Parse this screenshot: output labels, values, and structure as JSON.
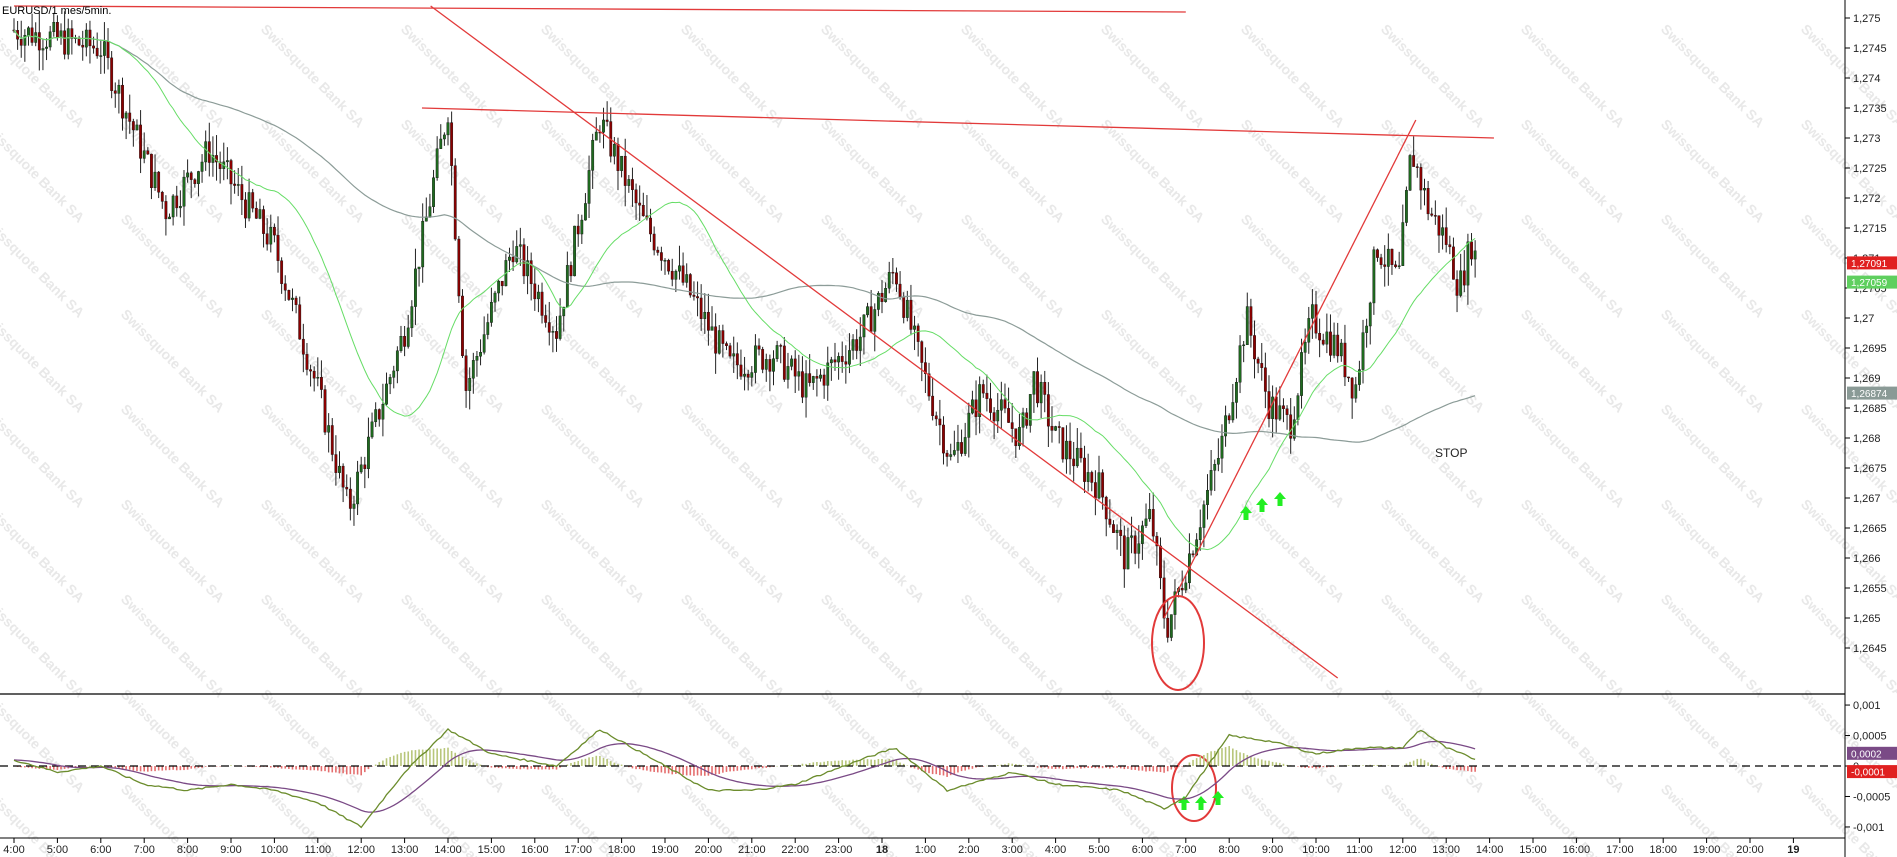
{
  "title": "EURUSD/1 mes/5min.",
  "watermark": "Swissquote Bank SA",
  "annotation": "STOP",
  "colors": {
    "bull": "#1f6b1f",
    "bear": "#8b0000",
    "ma_fast": "#66dd66",
    "ma_slow": "#8c9c98",
    "trendline": "#e23a3a",
    "macd_line": "#6b8c2c",
    "signal_line": "#7a4a86",
    "hist_pos": "#b8c67a",
    "hist_neg": "#e46e6e",
    "arrow": "#22ee22"
  },
  "chart_data": [
    {
      "type": "candlestick",
      "name": "price",
      "title": "EURUSD/1 mes/5min.",
      "ylim": [
        1.2638,
        1.2752
      ],
      "y_ticks": [
        "1,275",
        "1,2745",
        "1,274",
        "1,2735",
        "1,273",
        "1,2725",
        "1,272",
        "1,2715",
        "1,271",
        "1,2705",
        "1,27",
        "1,2695",
        "1,269",
        "1,2685",
        "1,268",
        "1,2675",
        "1,267",
        "1,2665",
        "1,266",
        "1,2655",
        "1,265",
        "1,2645"
      ],
      "price_labels": [
        {
          "value": 1.27091,
          "text": "1,27091",
          "color": "#e02020"
        },
        {
          "value": 1.27059,
          "text": "1,27059",
          "color": "#5fcf5f"
        },
        {
          "value": 1.26874,
          "text": "1,26874",
          "color": "#8a9a96"
        }
      ],
      "x_range_hours": [
        3.75,
        24.3
      ],
      "key_points": [
        {
          "t": 4.0,
          "price": 1.2748
        },
        {
          "t": 6.0,
          "price": 1.2745
        },
        {
          "t": 7.5,
          "price": 1.2718
        },
        {
          "t": 8.5,
          "price": 1.2728
        },
        {
          "t": 10.0,
          "price": 1.2712
        },
        {
          "t": 11.0,
          "price": 1.2688
        },
        {
          "t": 11.7,
          "price": 1.2668
        },
        {
          "t": 13.0,
          "price": 1.2698
        },
        {
          "t": 14.0,
          "price": 1.2735
        },
        {
          "t": 14.4,
          "price": 1.2688
        },
        {
          "t": 15.5,
          "price": 1.2712
        },
        {
          "t": 16.5,
          "price": 1.2698
        },
        {
          "t": 17.5,
          "price": 1.2733
        },
        {
          "t": 18.5,
          "price": 1.2716
        },
        {
          "t": 19.5,
          "price": 1.2705
        },
        {
          "t": 20.5,
          "price": 1.2692
        },
        {
          "t": 21.5,
          "price": 1.2694
        },
        {
          "t": 22.3,
          "price": 1.2688
        },
        {
          "t": 23.5,
          "price": 1.2697
        },
        {
          "t": 24.3,
          "price": 1.2708
        },
        {
          "t": 24.9,
          "price": 1.2692
        },
        {
          "t": 25.6,
          "price": 1.2676
        },
        {
          "t": 26.3,
          "price": 1.2688
        },
        {
          "t": 27.2,
          "price": 1.268
        },
        {
          "t": 27.5,
          "price": 1.269
        },
        {
          "t": 28.0,
          "price": 1.268
        },
        {
          "t": 29.0,
          "price": 1.2672
        },
        {
          "t": 29.6,
          "price": 1.266
        },
        {
          "t": 30.2,
          "price": 1.2667
        },
        {
          "t": 30.55,
          "price": 1.2648
        },
        {
          "t": 30.9,
          "price": 1.2656
        },
        {
          "t": 31.3,
          "price": 1.2666
        },
        {
          "t": 31.8,
          "price": 1.2678
        },
        {
          "t": 32.4,
          "price": 1.27
        },
        {
          "t": 32.9,
          "price": 1.2686
        },
        {
          "t": 33.4,
          "price": 1.2682
        },
        {
          "t": 33.9,
          "price": 1.27
        },
        {
          "t": 34.5,
          "price": 1.2695
        },
        {
          "t": 34.9,
          "price": 1.2688
        },
        {
          "t": 35.4,
          "price": 1.2712
        },
        {
          "t": 35.9,
          "price": 1.2706
        },
        {
          "t": 36.2,
          "price": 1.2728
        },
        {
          "t": 36.6,
          "price": 1.2718
        },
        {
          "t": 37.0,
          "price": 1.2713
        },
        {
          "t": 37.3,
          "price": 1.2705
        },
        {
          "t": 37.6,
          "price": 1.2713
        },
        {
          "t": 37.7,
          "price": 1.2709
        }
      ],
      "trendlines": [
        {
          "t1": 4.0,
          "p1": 1.2752,
          "t2": 31.0,
          "p2": 1.2751
        },
        {
          "t1": 13.4,
          "p1": 1.2735,
          "t2": 38.1,
          "p2": 1.273
        },
        {
          "t1": 13.6,
          "p1": 1.2752,
          "t2": 34.5,
          "p2": 1.264
        },
        {
          "t1": 30.5,
          "p1": 1.265,
          "t2": 36.3,
          "p2": 1.2733
        }
      ],
      "x_ticks": [
        "4:00",
        "5:00",
        "6:00",
        "7:00",
        "8:00",
        "9:00",
        "10:00",
        "11:00",
        "12:00",
        "13:00",
        "14:00",
        "15:00",
        "16:00",
        "17:00",
        "18:00",
        "19:00",
        "20:00",
        "21:00",
        "22:00",
        "23:00",
        "18",
        "1:00",
        "2:00",
        "3:00",
        "4:00",
        "5:00",
        "6:00",
        "7:00",
        "8:00",
        "9:00",
        "10:00",
        "11:00",
        "12:00",
        "13:00",
        "14:00",
        "15:00",
        "16:00",
        "17:00",
        "18:00",
        "19:00",
        "20:00",
        "19"
      ]
    },
    {
      "type": "macd",
      "name": "indicator",
      "ylim": [
        -0.00105,
        0.00105
      ],
      "y_ticks": [
        "0,001",
        "0,0005",
        "0",
        "-0,0005",
        "-0,001"
      ],
      "value_labels": [
        {
          "value": 0.0002,
          "text": "0,0002",
          "color": "#7a4a86"
        },
        {
          "value": -0.0001,
          "text": "-0,0001",
          "color": "#e02020"
        }
      ],
      "key_points": [
        {
          "t": 4.0,
          "macd": 0.0001
        },
        {
          "t": 5.0,
          "macd": -0.0001
        },
        {
          "t": 6.0,
          "macd": 0.0
        },
        {
          "t": 7.0,
          "macd": -0.0003
        },
        {
          "t": 8.0,
          "macd": -0.0004
        },
        {
          "t": 9.0,
          "macd": -0.0003
        },
        {
          "t": 10.0,
          "macd": -0.0004
        },
        {
          "t": 11.0,
          "macd": -0.0006
        },
        {
          "t": 12.0,
          "macd": -0.001
        },
        {
          "t": 13.0,
          "macd": -0.0001
        },
        {
          "t": 14.0,
          "macd": 0.0006
        },
        {
          "t": 15.0,
          "macd": 0.0002
        },
        {
          "t": 16.5,
          "macd": 0.0
        },
        {
          "t": 17.5,
          "macd": 0.0006
        },
        {
          "t": 18.5,
          "macd": 0.0002
        },
        {
          "t": 20.0,
          "macd": -0.0004
        },
        {
          "t": 21.0,
          "macd": -0.0004
        },
        {
          "t": 22.0,
          "macd": -0.0003
        },
        {
          "t": 23.5,
          "macd": 0.0001
        },
        {
          "t": 24.3,
          "macd": 0.0003
        },
        {
          "t": 25.5,
          "macd": -0.0004
        },
        {
          "t": 27.0,
          "macd": -0.0001
        },
        {
          "t": 28.0,
          "macd": -0.0003
        },
        {
          "t": 29.5,
          "macd": -0.0004
        },
        {
          "t": 30.5,
          "macd": -0.0007
        },
        {
          "t": 31.0,
          "macd": -0.0005
        },
        {
          "t": 32.0,
          "macd": 0.0005
        },
        {
          "t": 33.0,
          "macd": 0.0004
        },
        {
          "t": 34.0,
          "macd": 0.0002
        },
        {
          "t": 35.0,
          "macd": 0.0003
        },
        {
          "t": 36.0,
          "macd": 0.0003
        },
        {
          "t": 36.4,
          "macd": 0.0006
        },
        {
          "t": 37.0,
          "macd": 0.0003
        },
        {
          "t": 37.7,
          "macd": 0.0001
        }
      ],
      "x_ticks": [
        "4:00",
        "5:00",
        "6:00",
        "7:00",
        "8:00",
        "9:00",
        "10:00",
        "11:00",
        "12:00",
        "13:00",
        "14:00",
        "15:00",
        "16:00",
        "17:00",
        "18:00",
        "19:00",
        "20:00",
        "21:00",
        "22:00",
        "23:00",
        "18",
        "1:00",
        "2:00",
        "3:00",
        "4:00",
        "5:00",
        "6:00",
        "7:00",
        "8:00",
        "9:00",
        "10:00",
        "11:00",
        "12:00",
        "13:00",
        "14:00",
        "15:00",
        "16:00",
        "17:00",
        "18:00",
        "19:00",
        "20:00",
        "19"
      ]
    }
  ]
}
